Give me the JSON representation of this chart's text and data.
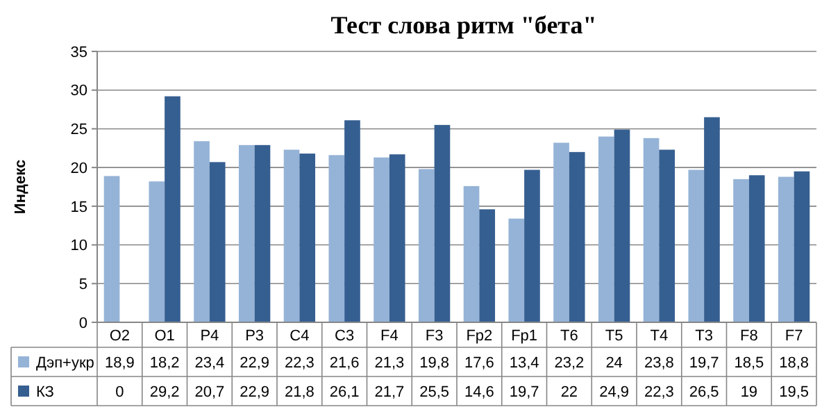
{
  "chart_data": {
    "type": "bar",
    "title": "Тест слова ритм \"бета\"",
    "ylabel": "Индекс",
    "categories": [
      "O2",
      "O1",
      "P4",
      "P3",
      "C4",
      "C3",
      "F4",
      "F3",
      "Fp2",
      "Fp1",
      "T6",
      "T5",
      "T4",
      "T3",
      "F8",
      "F7"
    ],
    "series": [
      {
        "name": "Дэп+укр",
        "color": "#95b3d7",
        "values": [
          18.9,
          18.2,
          23.4,
          22.9,
          22.3,
          21.6,
          21.3,
          19.8,
          17.6,
          13.4,
          23.2,
          24,
          23.8,
          19.7,
          18.5,
          18.8
        ],
        "value_labels": [
          "18,9",
          "18,2",
          "23,4",
          "22,9",
          "22,3",
          "21,6",
          "21,3",
          "19,8",
          "17,6",
          "13,4",
          "23,2",
          "24",
          "23,8",
          "19,7",
          "18,5",
          "18,8"
        ]
      },
      {
        "name": "КЗ",
        "color": "#365f91",
        "values": [
          0,
          29.2,
          20.7,
          22.9,
          21.8,
          26.1,
          21.7,
          25.5,
          14.6,
          19.7,
          22,
          24.9,
          22.3,
          26.5,
          19,
          19.5
        ],
        "value_labels": [
          "0",
          "29,2",
          "20,7",
          "22,9",
          "21,8",
          "26,1",
          "21,7",
          "25,5",
          "14,6",
          "19,7",
          "22",
          "24,9",
          "22,3",
          "26,5",
          "19",
          "19,5"
        ]
      }
    ],
    "ylim": [
      0,
      35
    ],
    "yticks": [
      0,
      5,
      10,
      15,
      20,
      25,
      30,
      35
    ],
    "grid": "y",
    "legend": "bottom"
  }
}
